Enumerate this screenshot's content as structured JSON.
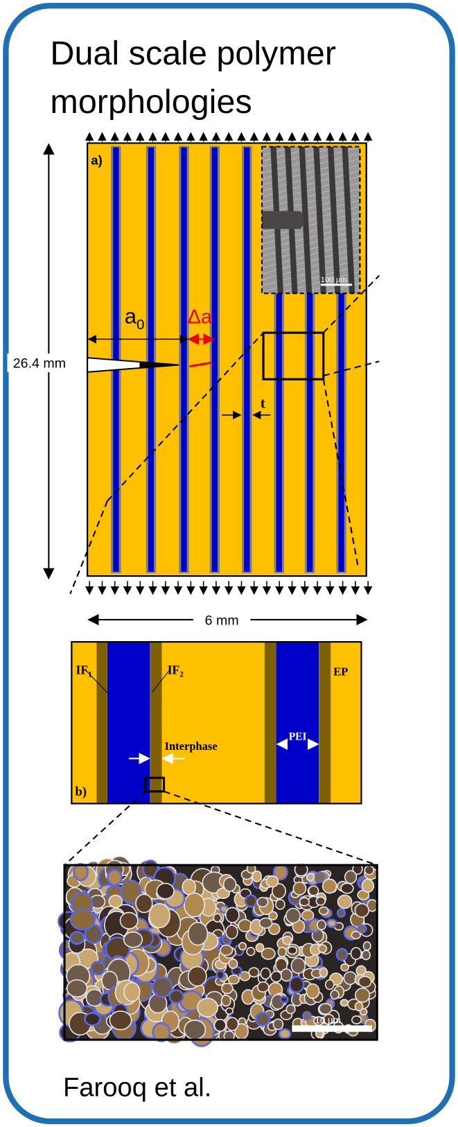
{
  "header": {
    "title": "Dual scale polymer morphologies"
  },
  "panel_a": {
    "label": "a)",
    "height_label": "26.4 mm",
    "width_label": "6 mm",
    "crack_length": {
      "text": "a",
      "sub": "0"
    },
    "crack_growth": "Δa",
    "thickness": "t",
    "inset_scale": "100 µm"
  },
  "panel_b": {
    "label": "b)",
    "interface_1": {
      "text": "IF",
      "sub": "1"
    },
    "interface_2": {
      "text": "IF",
      "sub": "2"
    },
    "epoxy": "EP",
    "pei": "PEI",
    "interphase": "Interphase"
  },
  "micrograph": {
    "scale": "10 µm"
  },
  "footer": {
    "citation": "Farooq et al."
  }
}
